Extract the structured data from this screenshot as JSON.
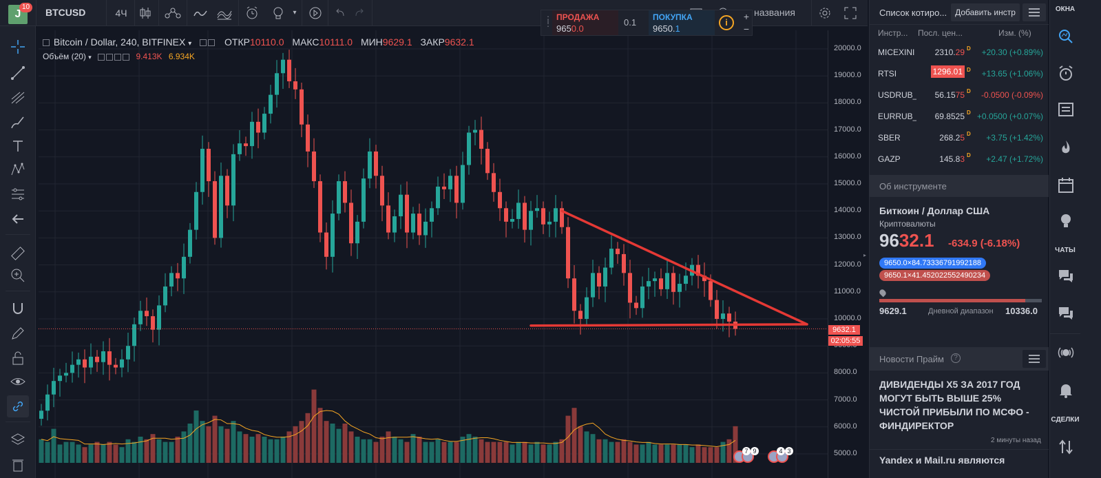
{
  "topbar": {
    "avatar_letter": "J",
    "avatar_badge": "10",
    "symbol": "BTCUSD",
    "interval": "4Ч",
    "search_text": "названия"
  },
  "trade": {
    "sell_label": "ПРОДАЖА",
    "sell_price_main": "965",
    "sell_price_hl": "0.0",
    "spread": "0.1",
    "buy_label": "ПОКУПКА",
    "buy_price_main": "9650.",
    "buy_price_hl": "1",
    "plus": "+",
    "minus": "−",
    "info": "i"
  },
  "legend": {
    "title": "Bitcoin / Dollar, 240, BITFINEX",
    "open_label": "ОТКР",
    "open": "10110.0",
    "high_label": "МАКС",
    "high": "10111.0",
    "low_label": "МИН",
    "low": "9629.1",
    "close_label": "ЗАКР",
    "close": "9632.1",
    "volume_label": "Объём (20)",
    "volume_value": "9.413K",
    "volume_ma": "6.934K"
  },
  "price_axis": {
    "ticks": [
      "20000.0",
      "19000.0",
      "18000.0",
      "17000.0",
      "16000.0",
      "15000.0",
      "14000.0",
      "13000.0",
      "12000.0",
      "11000.0",
      "10000.0",
      "9000.0",
      "8000.0",
      "7000.0",
      "6000.0",
      "5000.0"
    ],
    "last_price": "9632.1",
    "countdown": "02:05:55"
  },
  "chart_data": {
    "type": "candlestick",
    "ylim": [
      4700,
      20300
    ],
    "close": [
      6600,
      7200,
      7700,
      7900,
      8000,
      8300,
      8500,
      8200,
      8600,
      8400,
      8800,
      8300,
      8200,
      8500,
      9000,
      9800,
      10300,
      10100,
      9600,
      10500,
      11200,
      11700,
      11500,
      12300,
      13300,
      14700,
      16300,
      15100,
      13000,
      15300,
      14200,
      16100,
      16500,
      16400,
      17300,
      16900,
      17600,
      18300,
      19100,
      19600,
      18800,
      18500,
      17200,
      16200,
      15100,
      13200,
      12300,
      13900,
      15100,
      14300,
      12800,
      13600,
      15200,
      16200,
      15300,
      14200,
      13200,
      13800,
      14600,
      13200,
      13900,
      13100,
      13600,
      14100,
      14900,
      14800,
      15300,
      14300,
      15700,
      16900,
      17000,
      16300,
      15400,
      14700,
      14100,
      13600,
      13700,
      14300,
      13300,
      14000,
      14100,
      13500,
      13600,
      14100,
      13400,
      11500,
      10300,
      10000,
      10800,
      11700,
      11200,
      11900,
      12600,
      12400,
      11700,
      10600,
      10400,
      11200,
      11400,
      11500,
      11100,
      11700,
      11000,
      11300,
      11600,
      12000,
      11600,
      11400,
      10700,
      10000,
      10200,
      9900,
      9632
    ],
    "volume_levels_k": [
      0.9,
      0.8,
      1.3,
      0.7,
      0.8,
      0.8,
      0.7,
      0.6,
      0.7,
      0.8,
      0.7,
      0.8,
      0.7,
      0.6,
      0.9,
      0.8,
      1.0,
      0.9,
      1.1,
      0.9,
      0.8,
      0.8,
      1.0,
      1.2,
      1.5,
      2.0,
      1.6,
      1.4,
      1.8,
      1.4,
      1.3,
      1.6,
      1.2,
      1.1,
      1.0,
      1.1,
      1.0,
      0.9,
      0.9,
      1.0,
      1.2,
      1.4,
      1.6,
      1.9,
      2.8,
      2.1,
      1.6,
      1.5,
      1.3,
      1.5,
      1.2,
      1.0,
      0.9,
      0.9,
      0.8,
      1.0,
      1.2,
      1.0,
      0.9,
      0.8,
      1.1,
      1.0,
      0.8,
      0.8,
      0.9,
      0.8,
      0.8,
      0.8,
      1.0,
      1.1,
      1.0,
      0.9,
      0.8,
      0.8,
      0.8,
      0.8,
      0.7,
      0.8,
      0.8,
      0.7,
      0.8,
      0.7,
      0.7,
      0.8,
      0.9,
      1.8,
      2.1,
      1.4,
      1.2,
      1.1,
      0.9,
      0.9,
      0.8,
      0.8,
      0.9,
      0.8,
      0.7,
      0.7,
      0.8,
      0.7,
      0.7,
      0.7,
      0.7,
      0.7,
      0.7,
      0.6,
      0.7,
      0.6,
      0.6,
      0.6,
      0.8,
      0.9,
      1.4
    ],
    "trendline_upper": [
      [
        84,
        14000
      ],
      [
        112,
        9800
      ]
    ],
    "trendline_lower": [
      [
        79,
        9750
      ],
      [
        112,
        9800
      ]
    ],
    "last_price_line": 9632.1
  },
  "watchlist": {
    "title": "Список котиро...",
    "add_button": "Добавить инстр",
    "col_symbol": "Инстр...",
    "col_last": "Посл. цен...",
    "col_change": "Изм. (%)",
    "rows": [
      {
        "symbol": "MICEXINI",
        "last_main": "2310.",
        "last_hl": "29",
        "change": "+20.30 (+0.89%)",
        "dir": "pos",
        "box": false
      },
      {
        "symbol": "RTSI",
        "last_main": "",
        "last_hl": "1296.01",
        "change": "+13.65 (+1.06%)",
        "dir": "pos",
        "box": true
      },
      {
        "symbol": "USDRUB_",
        "last_main": "56.15",
        "last_hl": "75",
        "change": "-0.0500 (-0.09%)",
        "dir": "neg",
        "box": false
      },
      {
        "symbol": "EURRUB_",
        "last_main": "69.8525",
        "last_hl": "",
        "change": "+0.0500 (+0.07%)",
        "dir": "pos",
        "box": false
      },
      {
        "symbol": "SBER",
        "last_main": "268.2",
        "last_hl": "5",
        "change": "+3.75 (+1.42%)",
        "dir": "pos",
        "box": false
      },
      {
        "symbol": "GAZP",
        "last_main": "145.8",
        "last_hl": "3",
        "change": "+2.47 (+1.72%)",
        "dir": "pos",
        "box": false
      }
    ],
    "d_mark": "D"
  },
  "about": {
    "header": "Об инструменте",
    "name": "Биткоин / Доллар США",
    "type": "Криптовалюты",
    "price_main": "96",
    "price_hl": "32.1",
    "change": "-634.9 (-6.18%)",
    "bid": "9650.0×84.73336791992188",
    "ask": "9650.1×41.452022552490234",
    "range_low": "9629.1",
    "range_label": "Дневной диапазон",
    "range_high": "10336.0",
    "range_fill_fraction": 0.9
  },
  "news": {
    "header": "Новости Прайм",
    "headline1": "ДИВИДЕНДЫ X5 ЗА 2017 ГОД МОГУТ БЫТЬ ВЫШЕ 25% ЧИСТОЙ ПРИБЫЛИ ПО МСФО - ФИНДИРЕКТОР",
    "time1": "2 минуты назад",
    "headline2": "Yandex и Mail.ru являются"
  },
  "right_toolbar": {
    "windows_label": "ОКНА",
    "chats_label": "ЧАТЫ",
    "deals_label": "СДЕЛКИ"
  },
  "events": {
    "badge1": "7",
    "badge2": "9",
    "badge3": "4",
    "badge4": "3"
  },
  "colors": {
    "up": "#26a69a",
    "down": "#ef5350",
    "trendline": "#e53935",
    "volume_ma": "#f6a623",
    "background": "#131722"
  }
}
